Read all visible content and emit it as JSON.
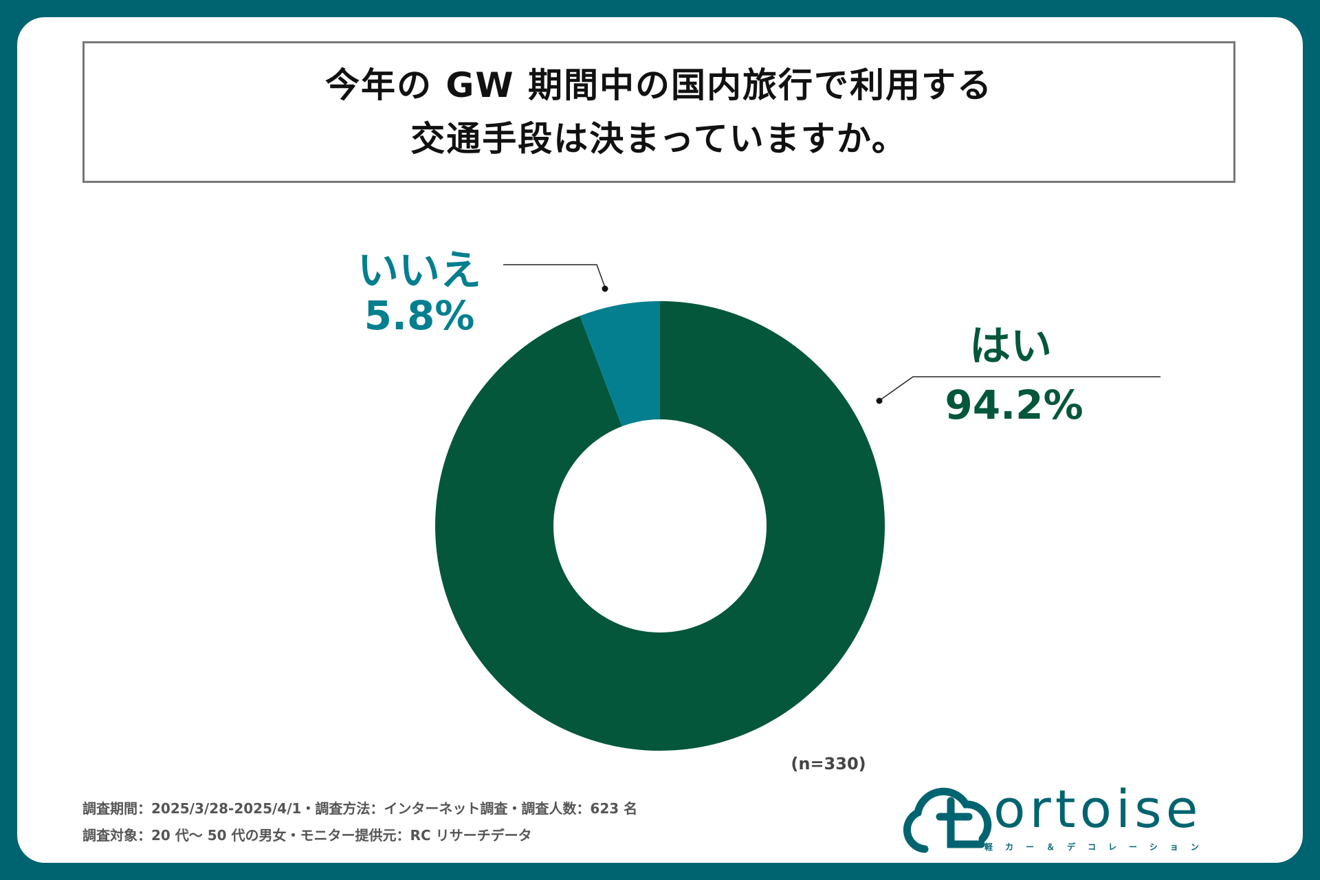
{
  "title": {
    "line1": "今年の GW 期間中の国内旅行で利用する",
    "line2": "交通手段は決まっていますか。"
  },
  "chart_data": {
    "type": "pie",
    "donut": true,
    "slices": [
      {
        "name": "はい",
        "value": 94.2,
        "label": "94.2%",
        "color": "#04573b"
      },
      {
        "name": "いいえ",
        "value": 5.8,
        "label": "5.8%",
        "color": "#047f8f"
      }
    ],
    "sample_note": "(n=330)"
  },
  "footnotes": {
    "line1": "調査期間：2025/3/28-2025/4/1・調査方法：インターネット調査・調査人数：623 名",
    "line2": "調査対象：20 代～ 50 代の男女・モニター提供元：RC リサーチデータ"
  },
  "logo": {
    "word": "ortoise",
    "tagline": "軽カー＆デコレーション",
    "icon": "cloud-t-logo-icon"
  },
  "colors": {
    "background": "#006470",
    "yes": "#04573b",
    "no": "#047f8f"
  }
}
